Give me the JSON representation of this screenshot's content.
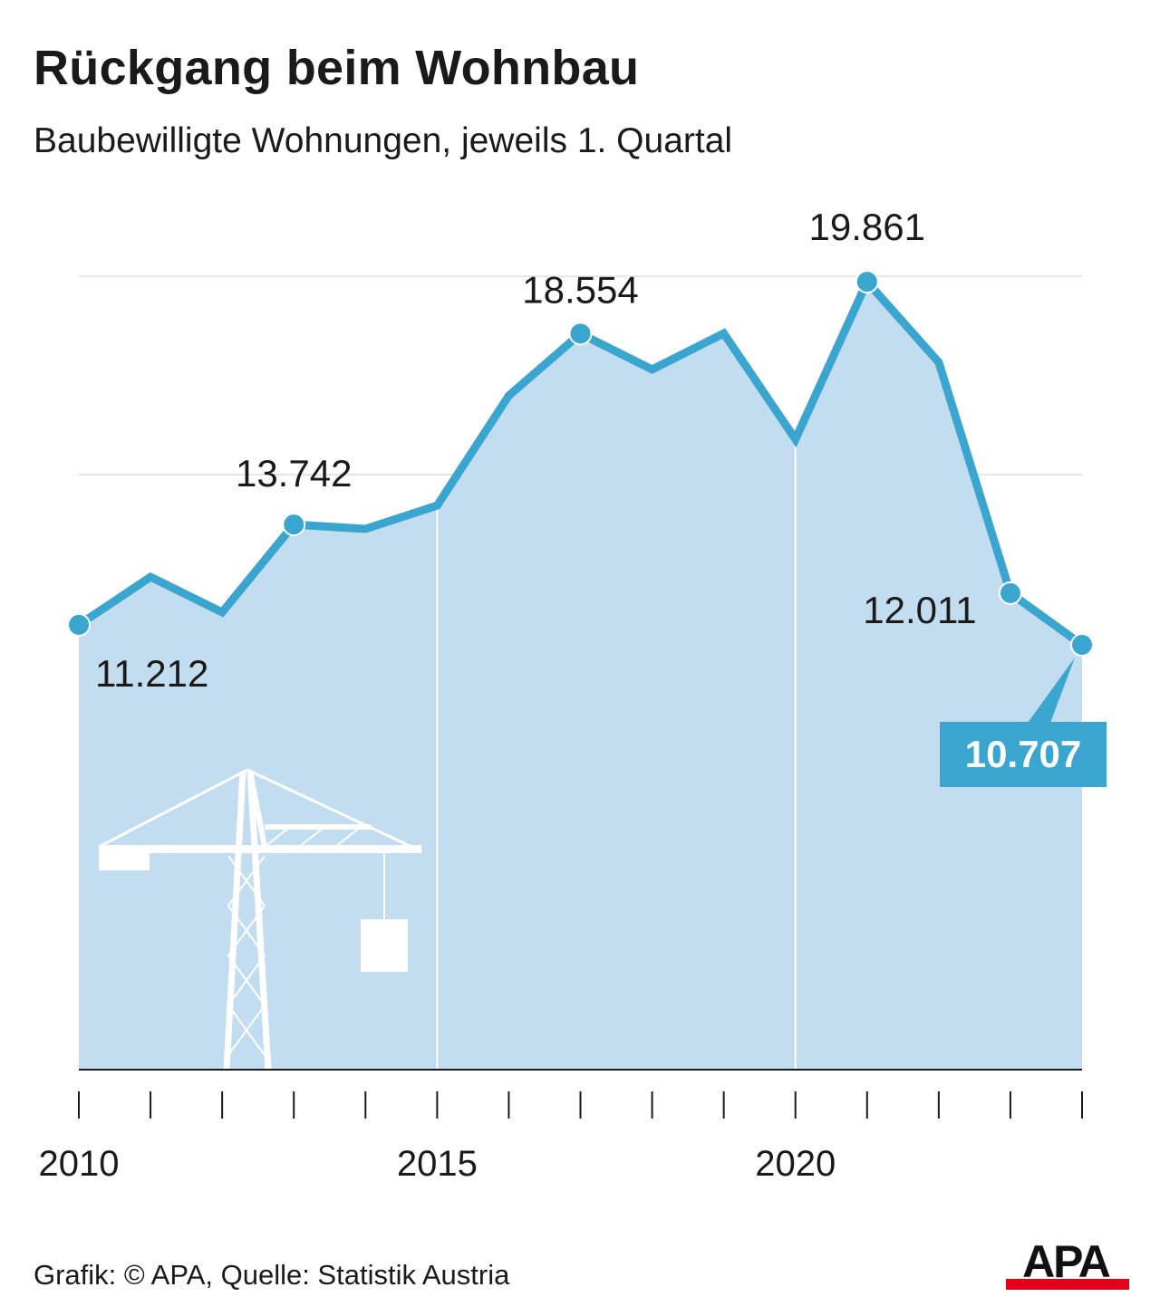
{
  "title": "Rückgang beim Wohnbau",
  "subtitle": "Baubewilligte Wohnungen, jeweils 1. Quartal",
  "footer": "Grafik: © APA, Quelle: Statistik Austria",
  "logo": "APA",
  "chart_data": {
    "type": "area",
    "title": "Rückgang beim Wohnbau",
    "subtitle": "Baubewilligte Wohnungen, jeweils 1. Quartal",
    "x": [
      2010,
      2011,
      2012,
      2013,
      2014,
      2015,
      2016,
      2017,
      2018,
      2019,
      2020,
      2021,
      2022,
      2023,
      2024
    ],
    "values": [
      11212,
      12420,
      11530,
      13742,
      13630,
      14220,
      16990,
      18554,
      17650,
      18560,
      15890,
      19861,
      17830,
      12011,
      10707
    ],
    "xlim": [
      2010,
      2024
    ],
    "ylim": [
      0,
      20000
    ],
    "x_tick_labels": [
      "2010",
      "2015",
      "2020"
    ],
    "grid": "horizontal, at 5000, 10000, 15000 and 20000, no y tick labels",
    "data_labels": [
      {
        "year": 2010,
        "text": "11.212"
      },
      {
        "year": 2013,
        "text": "13.742"
      },
      {
        "year": 2017,
        "text": "18.554"
      },
      {
        "year": 2021,
        "text": "19.861"
      },
      {
        "year": 2023,
        "text": "12.011"
      },
      {
        "year": 2024,
        "text": "10.707",
        "highlight": true
      }
    ],
    "colors": {
      "line": "#3aa6d0",
      "fill": "#c2ddef",
      "highlight_box": "#3aa6d0",
      "grid": "#e6e6e6"
    }
  }
}
